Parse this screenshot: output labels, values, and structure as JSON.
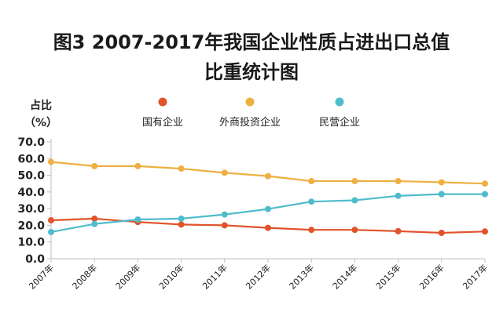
{
  "title_line1": "图3  2007-2017年我国企业性质占进出口总值",
  "title_line2": "比重统计图",
  "ylabel_line1": "占比",
  "ylabel_line2": "（%）",
  "colors": {
    "soe": "#e0532b",
    "foreign": "#eeb042",
    "private": "#4fbccb",
    "axis": "#bfbfbf",
    "text": "#222222"
  },
  "chart_data": {
    "type": "line",
    "title": "图3  2007-2017年我国企业性质占进出口总值比重统计图",
    "ylabel": "占比（%）",
    "xlabel": "",
    "ylim": [
      0,
      70
    ],
    "yticks": [
      "0.0",
      "10.0",
      "20.0",
      "30.0",
      "40.0",
      "50.0",
      "60.0",
      "70.0"
    ],
    "grid": false,
    "legend_position": "top",
    "categories": [
      "2007年",
      "2008年",
      "2009年",
      "2010年",
      "2011年",
      "2012年",
      "2013年",
      "2014年",
      "2015年",
      "2016年",
      "2017年"
    ],
    "series": [
      {
        "name": "国有企业",
        "values": [
          23.0,
          24.0,
          22.0,
          20.5,
          20.0,
          18.5,
          17.3,
          17.3,
          16.5,
          15.5,
          16.3
        ]
      },
      {
        "name": "外商投资企业",
        "values": [
          58.0,
          55.5,
          55.5,
          54.0,
          51.5,
          49.5,
          46.5,
          46.5,
          46.5,
          45.8,
          45.0
        ]
      },
      {
        "name": "民营企业",
        "values": [
          16.0,
          20.8,
          23.5,
          24.0,
          26.5,
          29.8,
          34.2,
          35.0,
          37.7,
          38.7,
          38.7
        ]
      }
    ]
  }
}
